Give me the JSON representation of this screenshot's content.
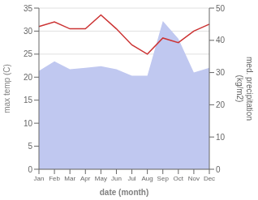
{
  "chart_data": {
    "type": "line",
    "categories": [
      "Jan",
      "Feb",
      "Mar",
      "Apr",
      "May",
      "Jun",
      "Jul",
      "Aug",
      "Sep",
      "Oct",
      "Nov",
      "Dec"
    ],
    "xlabel": "date (month)",
    "ylabel": "max temp (C)",
    "y2label": "med. precipitation\n(kg/m2)",
    "ylim": [
      0,
      35
    ],
    "yticks": [
      0,
      5,
      10,
      15,
      20,
      25,
      30,
      35
    ],
    "y2lim": [
      0,
      50
    ],
    "y2ticks": [
      0,
      10,
      20,
      30,
      40,
      50
    ],
    "grid": true,
    "series": [
      {
        "type": "area",
        "axis": "y2",
        "color": "#c0c8f0",
        "values": [
          30.5,
          33.5,
          31.0,
          31.5,
          32.0,
          31.0,
          29.0,
          29.0,
          46.0,
          40.5,
          30.0,
          31.5
        ]
      },
      {
        "type": "line",
        "color": "#cc3333",
        "values": [
          31.0,
          32.0,
          30.5,
          30.5,
          33.5,
          30.5,
          27.0,
          25.0,
          28.5,
          27.5,
          30.0,
          31.5
        ]
      }
    ]
  }
}
